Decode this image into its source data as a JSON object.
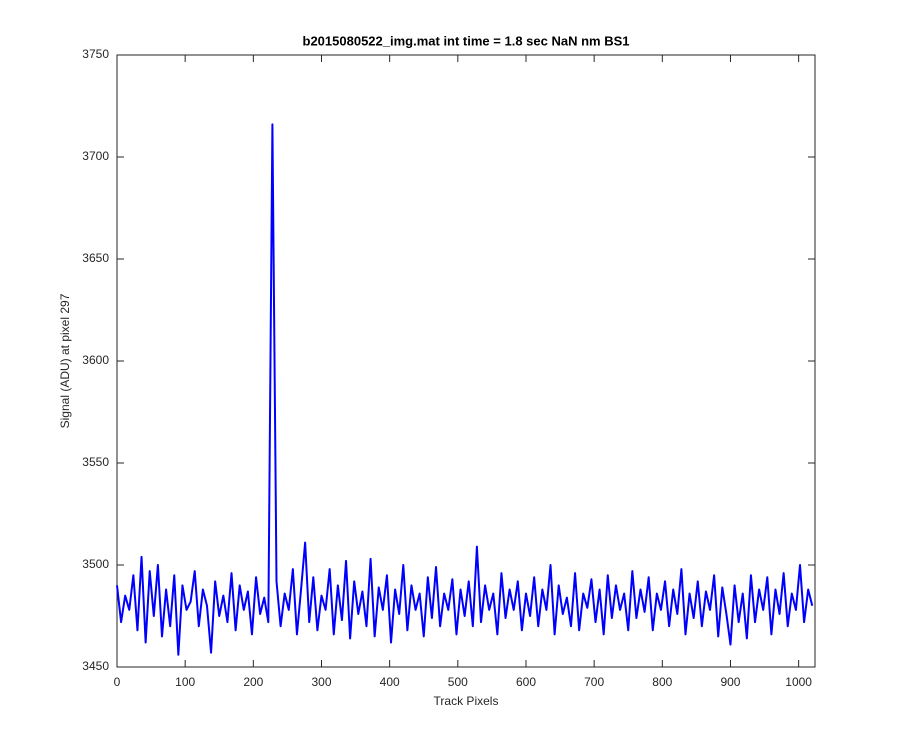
{
  "chart_data": {
    "type": "line",
    "title": "b2015080522_img.mat int time = 1.8 sec  NaN nm BS1",
    "x_label": "Track Pixels",
    "y_label": "Signal (ADU) at pixel 297",
    "color": "#0000ff",
    "xlim": [
      0,
      1024
    ],
    "ylim": [
      3450,
      3750
    ],
    "xticks": [
      0,
      100,
      200,
      300,
      400,
      500,
      600,
      700,
      800,
      900,
      1000
    ],
    "yticks": [
      3450,
      3500,
      3550,
      3600,
      3650,
      3700,
      3750
    ],
    "grid": false,
    "x": [
      0,
      6,
      12,
      18,
      24,
      30,
      36,
      42,
      48,
      54,
      60,
      66,
      72,
      78,
      84,
      90,
      96,
      102,
      108,
      114,
      120,
      126,
      132,
      138,
      144,
      150,
      156,
      162,
      168,
      174,
      180,
      186,
      192,
      198,
      204,
      210,
      216,
      222,
      228,
      234,
      240,
      246,
      252,
      258,
      264,
      270,
      276,
      282,
      288,
      294,
      300,
      306,
      312,
      318,
      324,
      330,
      336,
      342,
      348,
      354,
      360,
      366,
      372,
      378,
      384,
      390,
      396,
      402,
      408,
      414,
      420,
      426,
      432,
      438,
      444,
      450,
      456,
      462,
      468,
      474,
      480,
      486,
      492,
      498,
      504,
      510,
      516,
      522,
      528,
      534,
      540,
      546,
      552,
      558,
      564,
      570,
      576,
      582,
      588,
      594,
      600,
      606,
      612,
      618,
      624,
      630,
      636,
      642,
      648,
      654,
      660,
      666,
      672,
      678,
      684,
      690,
      696,
      702,
      708,
      714,
      720,
      726,
      732,
      738,
      744,
      750,
      756,
      762,
      768,
      774,
      780,
      786,
      792,
      798,
      804,
      810,
      816,
      822,
      828,
      834,
      840,
      846,
      852,
      858,
      864,
      870,
      876,
      882,
      888,
      894,
      900,
      906,
      912,
      918,
      924,
      930,
      936,
      942,
      948,
      954,
      960,
      966,
      972,
      978,
      984,
      990,
      996,
      1002,
      1008,
      1014,
      1020
    ],
    "values": [
      3490,
      3472,
      3485,
      3478,
      3495,
      3468,
      3504,
      3462,
      3497,
      3475,
      3500,
      3465,
      3488,
      3470,
      3495,
      3456,
      3490,
      3478,
      3482,
      3497,
      3470,
      3488,
      3480,
      3457,
      3492,
      3475,
      3485,
      3472,
      3496,
      3468,
      3490,
      3478,
      3487,
      3466,
      3494,
      3476,
      3484,
      3472,
      3716,
      3492,
      3470,
      3486,
      3478,
      3498,
      3466,
      3488,
      3511,
      3472,
      3494,
      3468,
      3485,
      3478,
      3498,
      3466,
      3490,
      3473,
      3502,
      3464,
      3492,
      3476,
      3487,
      3470,
      3503,
      3465,
      3489,
      3478,
      3495,
      3462,
      3488,
      3476,
      3500,
      3468,
      3490,
      3478,
      3486,
      3465,
      3494,
      3474,
      3499,
      3470,
      3486,
      3478,
      3493,
      3466,
      3488,
      3475,
      3492,
      3470,
      3509,
      3472,
      3490,
      3478,
      3486,
      3466,
      3496,
      3474,
      3488,
      3478,
      3492,
      3468,
      3486,
      3475,
      3494,
      3470,
      3488,
      3478,
      3500,
      3466,
      3490,
      3476,
      3484,
      3470,
      3496,
      3468,
      3486,
      3479,
      3493,
      3472,
      3488,
      3466,
      3495,
      3474,
      3490,
      3478,
      3486,
      3468,
      3497,
      3474,
      3488,
      3477,
      3494,
      3468,
      3486,
      3478,
      3492,
      3470,
      3488,
      3476,
      3498,
      3466,
      3486,
      3474,
      3492,
      3470,
      3487,
      3478,
      3495,
      3465,
      3489,
      3476,
      3461,
      3490,
      3472,
      3486,
      3464,
      3495,
      3472,
      3488,
      3478,
      3494,
      3466,
      3488,
      3476,
      3496,
      3470,
      3486,
      3478,
      3500,
      3472,
      3488,
      3480
    ]
  }
}
